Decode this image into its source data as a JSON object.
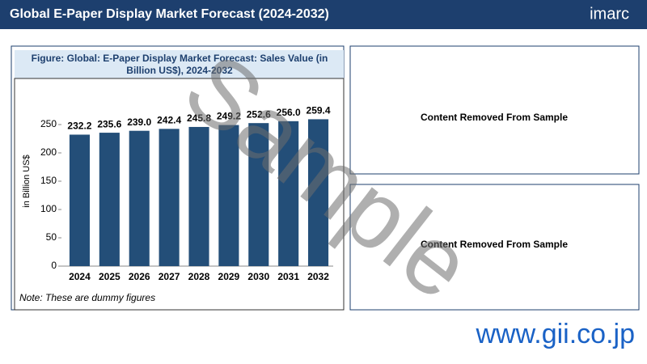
{
  "header": {
    "title": "Global E-Paper Display Market Forecast (2024-2032)",
    "logo": "imarc"
  },
  "chart_data": {
    "type": "bar",
    "title": "Figure: Global: E-Paper Display Market Forecast: Sales Value (in Billion US$), 2024-2032",
    "y_label": "in Billion US$",
    "categories": [
      "2024",
      "2025",
      "2026",
      "2027",
      "2028",
      "2029",
      "2030",
      "2031",
      "2032"
    ],
    "values": [
      232.2,
      235.6,
      239.0,
      242.4,
      245.8,
      249.2,
      252.6,
      256.0,
      259.4
    ],
    "value_labels": [
      "232.2",
      "235.6",
      "239.0",
      "242.4",
      "245.8",
      "249.2",
      "252.6",
      "256.0",
      "259.4"
    ],
    "color": "#234e78",
    "ylim": [
      0,
      300
    ],
    "yticks": [
      0,
      50,
      100,
      150,
      200,
      250
    ],
    "note": "Note: These are dummy figures"
  },
  "panels": [
    "Content Removed From Sample",
    "Content Removed From Sample"
  ],
  "watermark": "Sample",
  "footer": "www.gii.co.jp"
}
